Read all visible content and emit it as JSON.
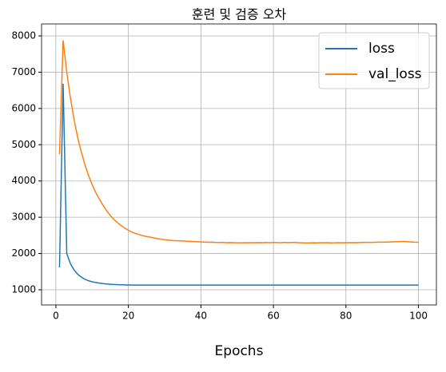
{
  "chart_data": {
    "type": "line",
    "title": "훈련 및 검증 오차",
    "x_label": "Epochs",
    "x": [
      1,
      2,
      3,
      4,
      5,
      6,
      7,
      8,
      9,
      10,
      11,
      12,
      13,
      14,
      15,
      16,
      17,
      18,
      19,
      20,
      21,
      22,
      23,
      24,
      25,
      26,
      27,
      28,
      29,
      30,
      31,
      32,
      33,
      34,
      35,
      36,
      37,
      38,
      39,
      40,
      41,
      42,
      43,
      44,
      45,
      46,
      47,
      48,
      49,
      50,
      51,
      52,
      53,
      54,
      55,
      56,
      57,
      58,
      59,
      60,
      61,
      62,
      63,
      64,
      65,
      66,
      67,
      68,
      69,
      70,
      71,
      72,
      73,
      74,
      75,
      76,
      77,
      78,
      79,
      80,
      81,
      82,
      83,
      84,
      85,
      86,
      87,
      88,
      89,
      90,
      91,
      92,
      93,
      94,
      95,
      96,
      97,
      98,
      99,
      100
    ],
    "series": [
      {
        "name": "loss",
        "color": "#1f77b4",
        "values": [
          1620,
          6680,
          2000,
          1720,
          1550,
          1430,
          1350,
          1290,
          1250,
          1220,
          1200,
          1185,
          1170,
          1160,
          1152,
          1146,
          1141,
          1137,
          1134,
          1132,
          1130,
          1130,
          1130,
          1130,
          1130,
          1130,
          1130,
          1130,
          1130,
          1130,
          1130,
          1130,
          1130,
          1130,
          1130,
          1130,
          1130,
          1130,
          1130,
          1130,
          1130,
          1130,
          1130,
          1130,
          1130,
          1130,
          1130,
          1130,
          1130,
          1130,
          1130,
          1130,
          1130,
          1130,
          1130,
          1130,
          1130,
          1130,
          1130,
          1130,
          1130,
          1130,
          1130,
          1130,
          1130,
          1130,
          1130,
          1130,
          1130,
          1130,
          1130,
          1130,
          1130,
          1130,
          1130,
          1130,
          1130,
          1130,
          1130,
          1130,
          1130,
          1130,
          1130,
          1130,
          1130,
          1130,
          1130,
          1130,
          1130,
          1130,
          1130,
          1130,
          1130,
          1130,
          1130,
          1130,
          1130,
          1130,
          1130,
          1130
        ]
      },
      {
        "name": "val_loss",
        "color": "#ff7f0e",
        "values": [
          4740,
          7880,
          7000,
          6300,
          5700,
          5200,
          4800,
          4450,
          4150,
          3900,
          3680,
          3500,
          3330,
          3180,
          3050,
          2940,
          2850,
          2770,
          2700,
          2640,
          2590,
          2550,
          2520,
          2490,
          2470,
          2450,
          2430,
          2410,
          2395,
          2380,
          2370,
          2360,
          2355,
          2350,
          2345,
          2340,
          2335,
          2330,
          2325,
          2320,
          2315,
          2310,
          2312,
          2306,
          2304,
          2308,
          2300,
          2302,
          2298,
          2296,
          2296,
          2298,
          2296,
          2300,
          2298,
          2302,
          2300,
          2304,
          2300,
          2306,
          2302,
          2300,
          2306,
          2302,
          2304,
          2308,
          2300,
          2296,
          2290,
          2294,
          2296,
          2294,
          2300,
          2296,
          2298,
          2294,
          2296,
          2300,
          2296,
          2298,
          2300,
          2302,
          2300,
          2304,
          2306,
          2306,
          2308,
          2310,
          2312,
          2314,
          2316,
          2318,
          2322,
          2326,
          2330,
          2334,
          2326,
          2318,
          2312,
          2310
        ]
      }
    ],
    "xlim": [
      -3.95,
      104.95
    ],
    "ylim": [
      582,
      8330
    ],
    "xticks": [
      0,
      20,
      40,
      60,
      80,
      100
    ],
    "yticks": [
      1000,
      2000,
      3000,
      4000,
      5000,
      6000,
      7000,
      8000
    ],
    "grid": true,
    "legend": "upper right"
  }
}
